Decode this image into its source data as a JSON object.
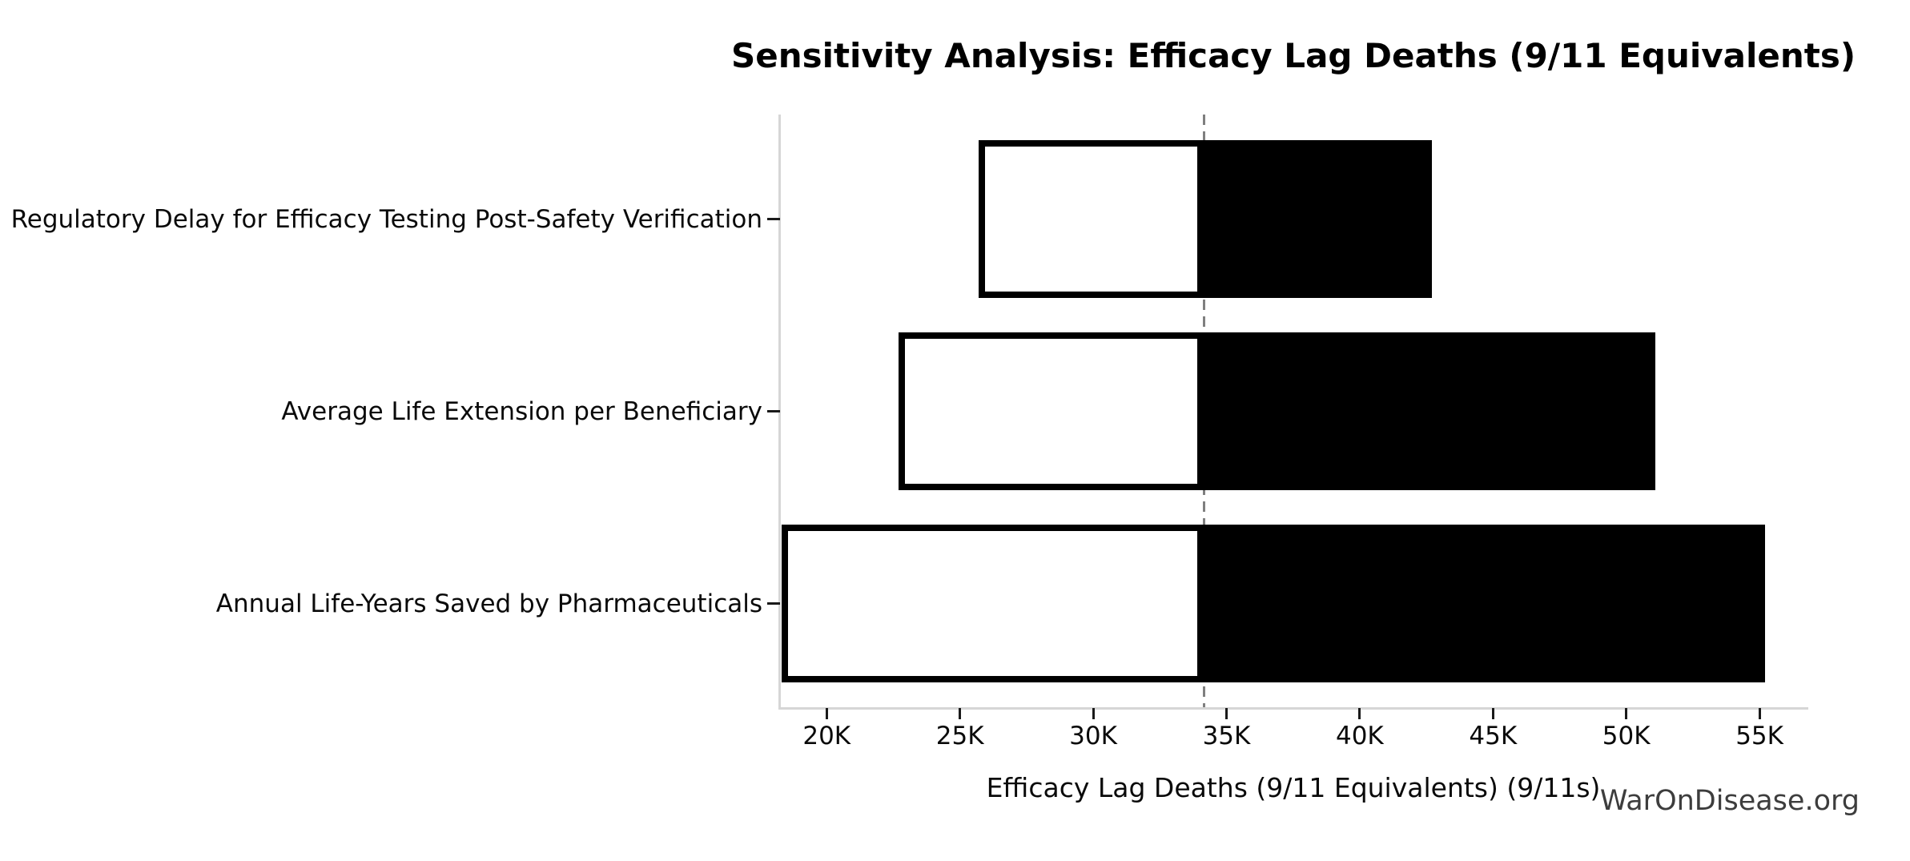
{
  "figure": {
    "watermark": "WarOnDisease.org"
  },
  "colors": {
    "background": "#ffffff",
    "bar_low_fill": "#ffffff",
    "bar_high_fill": "#000000",
    "bar_border": "#000000",
    "baseline_line": "#7f7f7f",
    "spine": "#d6d6d6",
    "tick_mark": "#1a1a1a",
    "text": "#0a0a0a",
    "watermark_text": "#3d3d3d"
  },
  "chart_data": {
    "type": "bar",
    "subtype": "tornado-sensitivity",
    "orientation": "horizontal",
    "title": "Sensitivity Analysis: Efficacy Lag Deaths (9/11 Equivalents)",
    "xlabel": "Efficacy Lag Deaths (9/11 Equivalents) (9/11s)",
    "ylabel": "",
    "categories": [
      "Regulatory Delay for Efficacy Testing Post-Safety Verification",
      "Average Life Extension per Beneficiary",
      "Annual Life-Years Saved by Pharmaceuticals"
    ],
    "baseline_value": 34150,
    "baseline_style": "dashed-vertical-gray",
    "series": [
      {
        "name": "low-estimate",
        "fill": "#ffffff",
        "values": [
          25700,
          22700,
          18300
        ]
      },
      {
        "name": "high-estimate",
        "fill": "#000000",
        "values": [
          42700,
          51100,
          55200
        ]
      }
    ],
    "xticks": {
      "values": [
        20000,
        25000,
        30000,
        35000,
        40000,
        45000,
        50000,
        55000
      ],
      "labels": [
        "20K",
        "25K",
        "30K",
        "35K",
        "40K",
        "45K",
        "50K",
        "55K"
      ]
    },
    "xlim": [
      18250,
      56800
    ],
    "grid": false,
    "legend": null
  }
}
